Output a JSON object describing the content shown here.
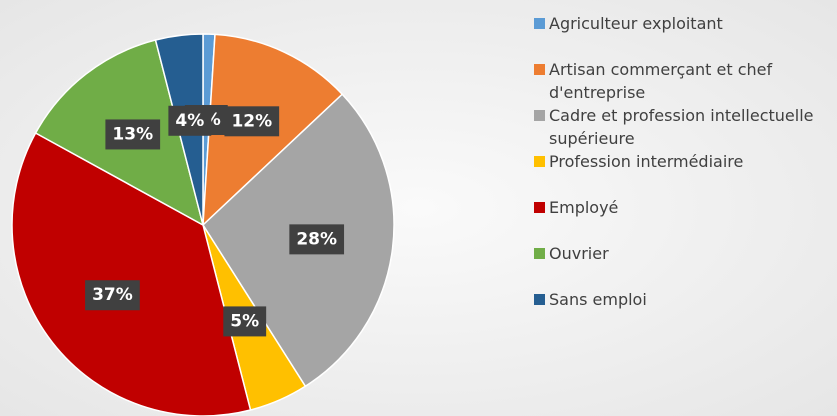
{
  "chart_data": {
    "type": "pie",
    "categories": [
      "Agriculteur exploitant",
      "Artisan commerçant et chef d'entreprise",
      "Cadre et profession intellectuelle supérieure",
      "Profession intermédiaire",
      "Employé",
      "Ouvrier",
      "Sans emploi"
    ],
    "values": [
      1,
      12,
      28,
      5,
      37,
      13,
      4
    ],
    "value_labels": [
      "1%",
      "12%",
      "28%",
      "5%",
      "37%",
      "13%",
      "4%"
    ],
    "colors": [
      "#5b9bd5",
      "#ed7d31",
      "#a5a5a5",
      "#ffc000",
      "#c00000",
      "#70ad47",
      "#255e91"
    ],
    "legend": "right"
  }
}
